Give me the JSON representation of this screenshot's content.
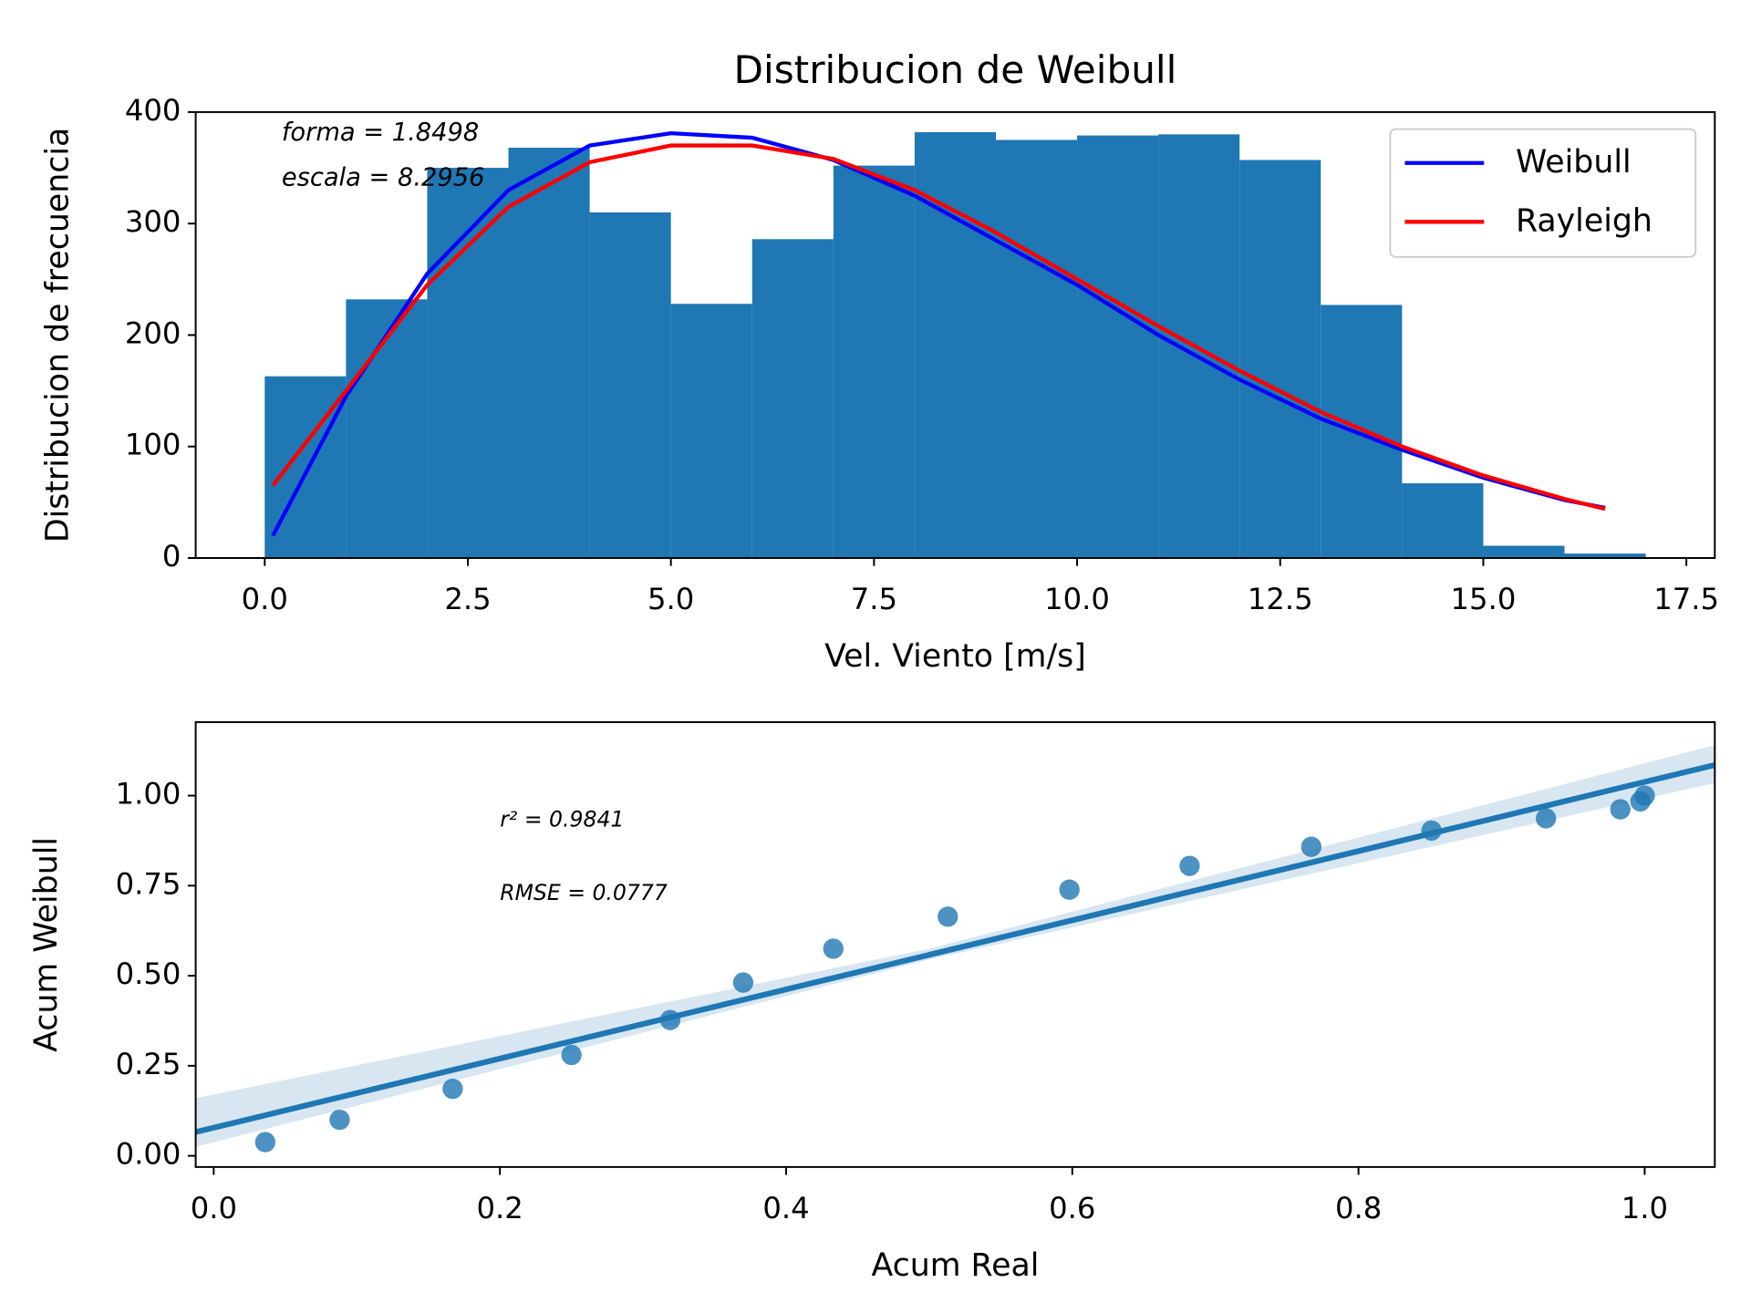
{
  "chart_data": [
    {
      "type": "histogram",
      "title": "Distribucion de Weibull",
      "x_label": "Vel. Viento [m/s]",
      "y_label": "Distribucion de frecuencia",
      "bins": [
        0,
        1,
        2,
        3,
        4,
        5,
        6,
        7,
        8,
        9,
        10,
        11,
        12,
        13,
        14,
        15,
        16,
        17
      ],
      "counts": [
        163,
        232,
        350,
        368,
        310,
        228,
        286,
        352,
        382,
        375,
        379,
        380,
        357,
        227,
        67,
        11,
        4
      ],
      "color": "#1f77b4",
      "x": [
        0.1,
        1,
        2,
        3,
        4,
        5,
        6,
        7,
        8,
        9,
        10,
        11,
        12,
        13,
        14,
        15,
        16,
        16.5
      ],
      "series": [
        {
          "name": "Weibull",
          "color": "#0000ff",
          "values": [
            20,
            145,
            255,
            330,
            370,
            381,
            377,
            357,
            325,
            285,
            245,
            200,
            160,
            125,
            97,
            72,
            52,
            45
          ]
        },
        {
          "name": "Rayleigh",
          "color": "#ff0000",
          "values": [
            65,
            150,
            245,
            315,
            355,
            370,
            370,
            358,
            330,
            292,
            250,
            208,
            168,
            131,
            100,
            74,
            53,
            44
          ]
        }
      ],
      "xlim": [
        -0.85,
        17.85
      ],
      "xticks": [
        {
          "value": 0,
          "label": "0.0"
        },
        {
          "value": 2.5,
          "label": "2.5"
        },
        {
          "value": 5,
          "label": "5.0"
        },
        {
          "value": 7.5,
          "label": "7.5"
        },
        {
          "value": 10,
          "label": "10.0"
        },
        {
          "value": 12.5,
          "label": "12.5"
        },
        {
          "value": 15,
          "label": "15.0"
        },
        {
          "value": 17.5,
          "label": "17.5"
        }
      ],
      "ylim": [
        0,
        400
      ],
      "yticks": [
        0,
        100,
        200,
        300,
        400
      ],
      "legend": "upper right",
      "annotations": [
        "forma = 1.8498",
        "escala = 8.2956"
      ]
    },
    {
      "type": "scatter",
      "x_label": "Acum Real",
      "y_label": "Acum Weibull",
      "x": [
        0.036,
        0.088,
        0.167,
        0.25,
        0.319,
        0.37,
        0.433,
        0.513,
        0.598,
        0.682,
        0.767,
        0.851,
        0.931,
        0.983,
        0.997,
        1.0
      ],
      "y": [
        0.038,
        0.1,
        0.186,
        0.28,
        0.377,
        0.481,
        0.575,
        0.664,
        0.739,
        0.805,
        0.858,
        0.903,
        0.937,
        0.962,
        0.984,
        1.0
      ],
      "color": "#1f77b4",
      "fit": {
        "x": [
          -0.0126,
          1.049
        ],
        "y": [
          0.066,
          1.085
        ]
      },
      "band": {
        "x": [
          -0.0126,
          0.5,
          1.049
        ],
        "lower": [
          0.025,
          0.545,
          1.035
        ],
        "upper": [
          0.16,
          0.575,
          1.14
        ]
      },
      "xlim": [
        -0.0126,
        1.049
      ],
      "xticks": [
        {
          "value": 0,
          "label": "0.0"
        },
        {
          "value": 0.2,
          "label": "0.2"
        },
        {
          "value": 0.4,
          "label": "0.4"
        },
        {
          "value": 0.6,
          "label": "0.6"
        },
        {
          "value": 0.8,
          "label": "0.8"
        },
        {
          "value": 1,
          "label": "1.0"
        }
      ],
      "ylim": [
        -0.031,
        1.204
      ],
      "yticks": [
        {
          "value": 0,
          "label": "0.00"
        },
        {
          "value": 0.25,
          "label": "0.25"
        },
        {
          "value": 0.5,
          "label": "0.50"
        },
        {
          "value": 0.75,
          "label": "0.75"
        },
        {
          "value": 1,
          "label": "1.00"
        }
      ],
      "annotations": [
        "r² = 0.9841",
        "RMSE = 0.0777"
      ]
    }
  ]
}
